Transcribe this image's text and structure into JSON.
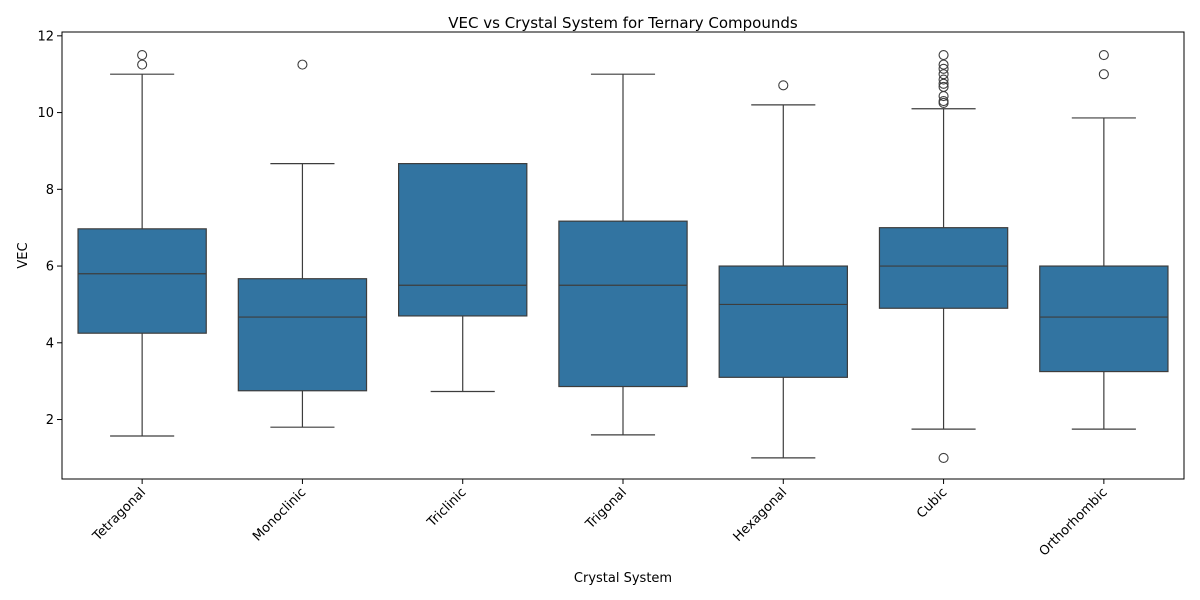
{
  "chart_data": {
    "type": "box",
    "title": "VEC vs Crystal System for Ternary Compounds",
    "xlabel": "Crystal System",
    "ylabel": "VEC",
    "ylim": [
      0.45,
      12.1
    ],
    "yticks": [
      2,
      4,
      6,
      8,
      10,
      12
    ],
    "ytick_labels": [
      "2",
      "4",
      "6",
      "8",
      "10",
      "12"
    ],
    "grid": false,
    "box_color": "#3274a1",
    "line_color": "#3d3d3d",
    "categories": [
      "Tetragonal",
      "Monoclinic",
      "Triclinic",
      "Trigonal",
      "Hexagonal",
      "Cubic",
      "Orthorhombic"
    ],
    "boxes": [
      {
        "category": "Tetragonal",
        "whisker_low": 1.57,
        "q1": 4.25,
        "median": 5.8,
        "q3": 6.97,
        "whisker_high": 11.0,
        "outliers": [
          11.25,
          11.5
        ]
      },
      {
        "category": "Monoclinic",
        "whisker_low": 1.8,
        "q1": 2.75,
        "median": 4.67,
        "q3": 5.67,
        "whisker_high": 8.67,
        "outliers": [
          11.25
        ]
      },
      {
        "category": "Triclinic",
        "whisker_low": 2.73,
        "q1": 4.7,
        "median": 5.5,
        "q3": 8.67,
        "whisker_high": 8.67,
        "outliers": []
      },
      {
        "category": "Trigonal",
        "whisker_low": 1.6,
        "q1": 2.86,
        "median": 5.5,
        "q3": 7.17,
        "whisker_high": 11.0,
        "outliers": []
      },
      {
        "category": "Hexagonal",
        "whisker_low": 1.0,
        "q1": 3.1,
        "median": 5.0,
        "q3": 6.0,
        "whisker_high": 10.2,
        "outliers": [
          10.71
        ]
      },
      {
        "category": "Cubic",
        "whisker_low": 1.75,
        "q1": 4.9,
        "median": 6.0,
        "q3": 7.0,
        "whisker_high": 10.1,
        "outliers": [
          1.0,
          10.25,
          10.3,
          10.43,
          10.67,
          10.75,
          10.86,
          11.0,
          11.14,
          11.25,
          11.5
        ]
      },
      {
        "category": "Orthorhombic",
        "whisker_low": 1.75,
        "q1": 3.25,
        "median": 4.67,
        "q3": 6.0,
        "whisker_high": 9.86,
        "outliers": [
          11.0,
          11.5
        ]
      }
    ]
  }
}
